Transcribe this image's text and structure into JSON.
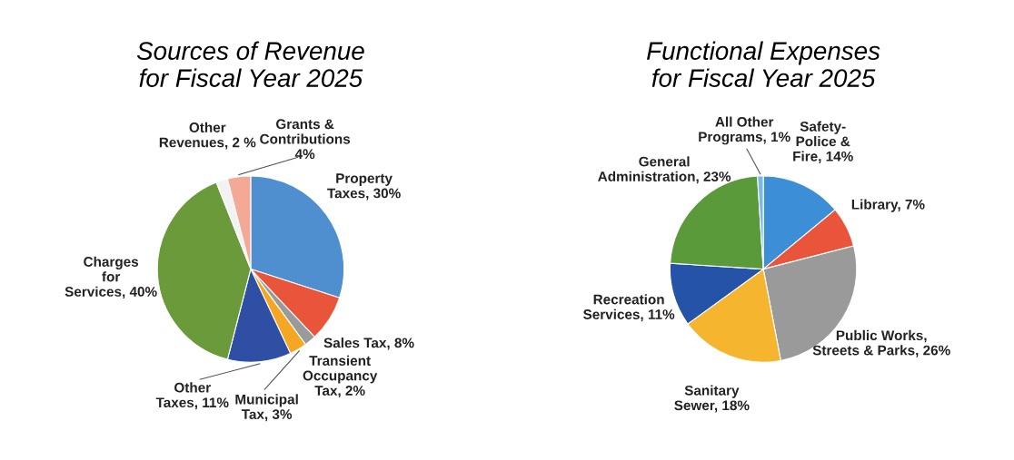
{
  "chart_data": [
    {
      "type": "pie",
      "title": "Sources of Revenue\nfor Fiscal Year 2025",
      "categories": [
        "Property\nTaxes",
        "Sales Tax",
        "Transient\nOccupancy\nTax",
        "Municipal\nTax",
        "Other\nTaxes",
        "Charges\nfor\nServices",
        "Other\nRevenues",
        "Grants &\nContributions\n"
      ],
      "values": [
        30,
        8,
        2,
        3,
        11,
        40,
        2,
        4
      ],
      "value_labels": [
        "30%",
        "8%",
        "2%",
        "3%",
        "11%",
        "40%",
        "2 %",
        "4%"
      ],
      "colors": [
        "#4f8fd0",
        "#e8553a",
        "#9a9a9a",
        "#f5a623",
        "#2e4fa3",
        "#6a9a3a",
        "#f2f2f2",
        "#f4a896"
      ]
    },
    {
      "type": "pie",
      "title": "Functional Expenses\nfor Fiscal Year 2025",
      "categories": [
        "Safety-\nPolice &\nFire",
        "Library",
        "Public Works,\nStreets & Parks",
        "Sanitary\nSewer",
        "Recreation\nServices",
        "General\nAdministration",
        "All Other\nPrograms"
      ],
      "values": [
        14,
        7,
        26,
        18,
        11,
        23,
        1
      ],
      "value_labels": [
        "14%",
        "7%",
        "26%",
        "18%",
        "11%",
        "23%",
        "1%"
      ],
      "colors": [
        "#3c8fd6",
        "#e8553a",
        "#9a9a9a",
        "#f5b52e",
        "#2553a8",
        "#5a9a3a",
        "#79b8e0"
      ]
    }
  ]
}
